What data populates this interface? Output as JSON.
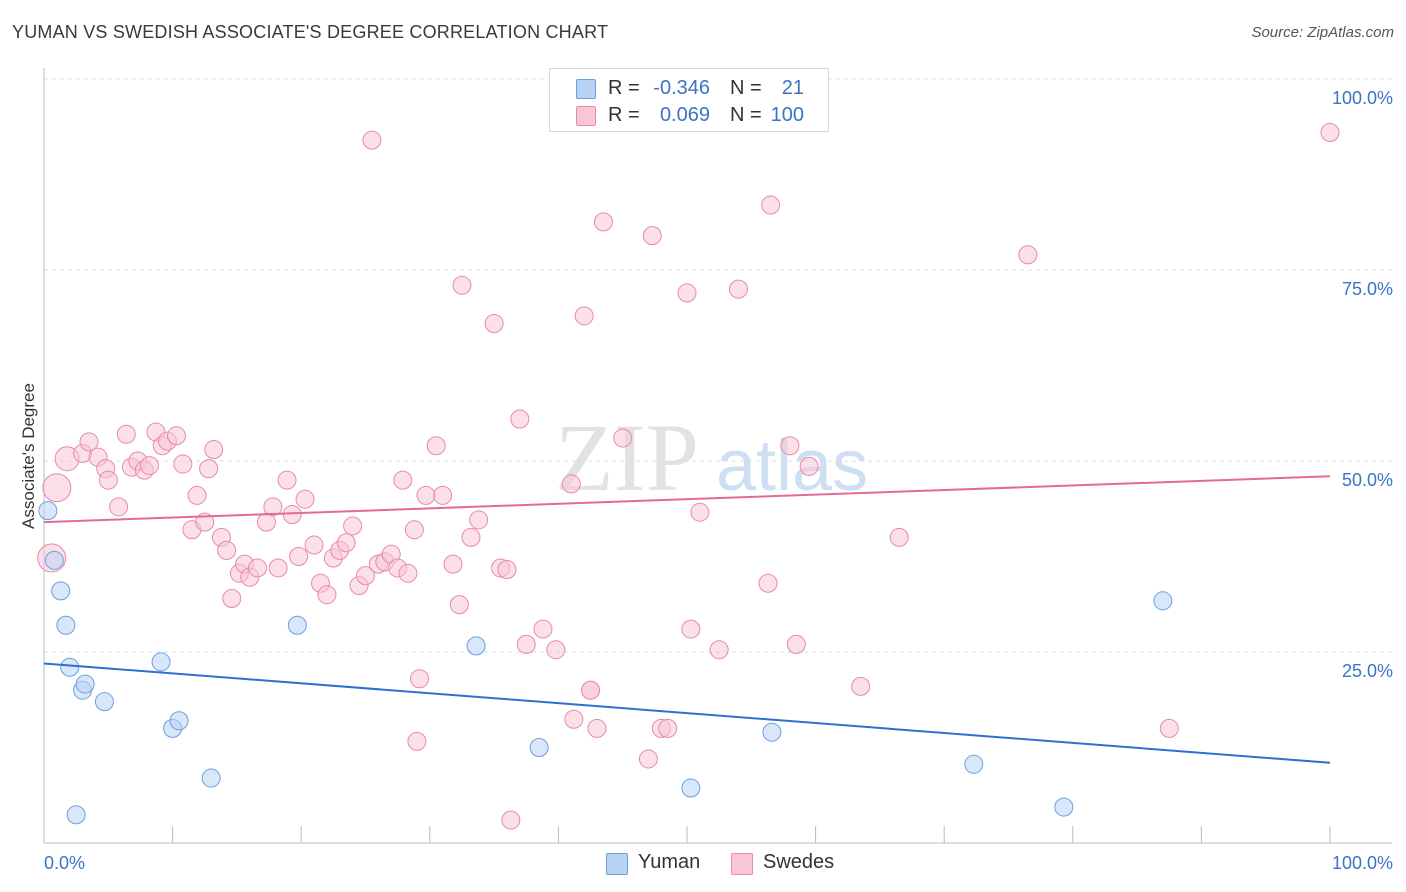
{
  "title": "YUMAN VS SWEDISH ASSOCIATE'S DEGREE CORRELATION CHART",
  "source": "Source: ZipAtlas.com",
  "watermark": {
    "zip": "ZIP",
    "atlas": "atlas"
  },
  "legend": {
    "r_label": "R =",
    "n_label": "N =",
    "rows": [
      {
        "name": "Yuman",
        "r": "-0.346",
        "n": "21"
      },
      {
        "name": "Swedes",
        "r": "0.069",
        "n": "100"
      }
    ]
  },
  "colors": {
    "yuman_fill": "#b9d3f5",
    "yuman_stroke": "#6a9fe0",
    "yuman_line": "#2f6fcf",
    "swedes_fill": "#f8c6d6",
    "swedes_stroke": "#e88aa8",
    "swedes_line": "#e26b97",
    "axis_label": "#3b74c4",
    "grid": "#dddddd"
  },
  "chart_data": {
    "type": "scatter",
    "xlabel": "",
    "ylabel": "Associate's Degree",
    "xlim": [
      0,
      100
    ],
    "ylim": [
      0,
      100
    ],
    "x_tick_labels": [
      "0.0%",
      "100.0%"
    ],
    "y_tick_labels": [
      {
        "value": 100,
        "label": "100.0%"
      },
      {
        "value": 75,
        "label": "75.0%"
      },
      {
        "value": 50,
        "label": "50.0%"
      },
      {
        "value": 25,
        "label": "25.0%"
      }
    ],
    "series": [
      {
        "name": "Yuman",
        "r": -0.346,
        "n": 21,
        "trend": {
          "x": [
            0,
            100
          ],
          "y": [
            23.5,
            10.5
          ]
        },
        "points": [
          [
            0.3,
            43.5,
            9
          ],
          [
            0.8,
            37,
            9
          ],
          [
            1.3,
            33,
            9
          ],
          [
            1.7,
            28.5,
            9
          ],
          [
            2,
            23,
            9
          ],
          [
            3,
            20,
            9
          ],
          [
            3.2,
            20.8,
            9
          ],
          [
            4.7,
            18.5,
            9
          ],
          [
            9.1,
            23.7,
            9
          ],
          [
            10,
            15,
            9
          ],
          [
            10.5,
            16,
            9
          ],
          [
            13,
            8.5,
            9
          ],
          [
            2.5,
            3.7,
            9
          ],
          [
            19.7,
            28.5,
            9
          ],
          [
            33.6,
            25.8,
            9
          ],
          [
            38.5,
            12.5,
            9
          ],
          [
            50.3,
            7.2,
            9
          ],
          [
            56.6,
            14.5,
            9
          ],
          [
            72.3,
            10.3,
            9
          ],
          [
            79.3,
            4.7,
            9
          ],
          [
            87,
            31.7,
            9
          ]
        ]
      },
      {
        "name": "Swedes",
        "r": 0.069,
        "n": 100,
        "trend": {
          "x": [
            0,
            100
          ],
          "y": [
            42,
            48
          ]
        },
        "points": [
          [
            1,
            46.5,
            14
          ],
          [
            0.6,
            37.3,
            14
          ],
          [
            1.8,
            50.3,
            12
          ],
          [
            3,
            51,
            9
          ],
          [
            3.5,
            52.5,
            9
          ],
          [
            4.2,
            50.5,
            9
          ],
          [
            4.8,
            49,
            9
          ],
          [
            5,
            47.5,
            9
          ],
          [
            5.8,
            44,
            9
          ],
          [
            6.4,
            53.5,
            9
          ],
          [
            6.8,
            49.2,
            9
          ],
          [
            7.3,
            50,
            9
          ],
          [
            7.8,
            48.8,
            9
          ],
          [
            8.2,
            49.4,
            9
          ],
          [
            8.7,
            53.8,
            9
          ],
          [
            9.2,
            52,
            9
          ],
          [
            9.6,
            52.6,
            9
          ],
          [
            10.3,
            53.3,
            9
          ],
          [
            10.8,
            49.6,
            9
          ],
          [
            11.5,
            41,
            9
          ],
          [
            11.9,
            45.5,
            9
          ],
          [
            12.5,
            42,
            9
          ],
          [
            12.8,
            49,
            9
          ],
          [
            13.2,
            51.5,
            9
          ],
          [
            13.8,
            40,
            9
          ],
          [
            14.2,
            38.3,
            9
          ],
          [
            14.6,
            32,
            9
          ],
          [
            15.2,
            35.3,
            9
          ],
          [
            15.6,
            36.5,
            9
          ],
          [
            16,
            34.8,
            9
          ],
          [
            16.6,
            36,
            9
          ],
          [
            17.3,
            42,
            9
          ],
          [
            17.8,
            44,
            9
          ],
          [
            18.2,
            36,
            9
          ],
          [
            18.9,
            47.5,
            9
          ],
          [
            19.3,
            43,
            9
          ],
          [
            19.8,
            37.5,
            9
          ],
          [
            20.3,
            45,
            9
          ],
          [
            21,
            39,
            9
          ],
          [
            21.5,
            34,
            9
          ],
          [
            22,
            32.5,
            9
          ],
          [
            22.5,
            37.3,
            9
          ],
          [
            23,
            38.3,
            9
          ],
          [
            23.5,
            39.3,
            9
          ],
          [
            24,
            41.5,
            9
          ],
          [
            24.5,
            33.7,
            9
          ],
          [
            25,
            35,
            9
          ],
          [
            25.5,
            92,
            9
          ],
          [
            26,
            36.5,
            9
          ],
          [
            26.5,
            36.8,
            9
          ],
          [
            27,
            37.8,
            9
          ],
          [
            27.5,
            36,
            9
          ],
          [
            27.9,
            47.5,
            9
          ],
          [
            28.3,
            35.3,
            9
          ],
          [
            28.8,
            41,
            9
          ],
          [
            29.7,
            45.5,
            9
          ],
          [
            30.5,
            52,
            9
          ],
          [
            31,
            45.5,
            9
          ],
          [
            31.8,
            36.5,
            9
          ],
          [
            32.3,
            31.2,
            9
          ],
          [
            32.5,
            73,
            9
          ],
          [
            33.2,
            40,
            9
          ],
          [
            33.8,
            42.3,
            9
          ],
          [
            35,
            68,
            9
          ],
          [
            35.5,
            36,
            9
          ],
          [
            36,
            35.8,
            9
          ],
          [
            36.3,
            3,
            9
          ],
          [
            37,
            55.5,
            9
          ],
          [
            37.5,
            26,
            9
          ],
          [
            38.8,
            28,
            9
          ],
          [
            39.8,
            25.3,
            9
          ],
          [
            41,
            47,
            9
          ],
          [
            41.2,
            16.2,
            9
          ],
          [
            42,
            69,
            9
          ],
          [
            42.5,
            20,
            9
          ],
          [
            43,
            15,
            9
          ],
          [
            43.5,
            81.3,
            9
          ],
          [
            45,
            53,
            9
          ],
          [
            47,
            11,
            9
          ],
          [
            47.3,
            79.5,
            9
          ],
          [
            48,
            15,
            9
          ],
          [
            50,
            72,
            9
          ],
          [
            50.3,
            28,
            9
          ],
          [
            51,
            43.3,
            9
          ],
          [
            52.5,
            25.3,
            9
          ],
          [
            54,
            72.5,
            9
          ],
          [
            56.5,
            83.5,
            9
          ],
          [
            56.3,
            34,
            9
          ],
          [
            58,
            52,
            9
          ],
          [
            58.5,
            26,
            9
          ],
          [
            59.5,
            49.3,
            9
          ],
          [
            63.5,
            20.5,
            9
          ],
          [
            66.5,
            40,
            9
          ],
          [
            76.5,
            77,
            9
          ],
          [
            87.5,
            15,
            9
          ],
          [
            100,
            93,
            9
          ],
          [
            29,
            13.3,
            9
          ],
          [
            29.2,
            21.5,
            9
          ],
          [
            48.5,
            15,
            9
          ],
          [
            42.5,
            20,
            9
          ]
        ]
      }
    ]
  }
}
